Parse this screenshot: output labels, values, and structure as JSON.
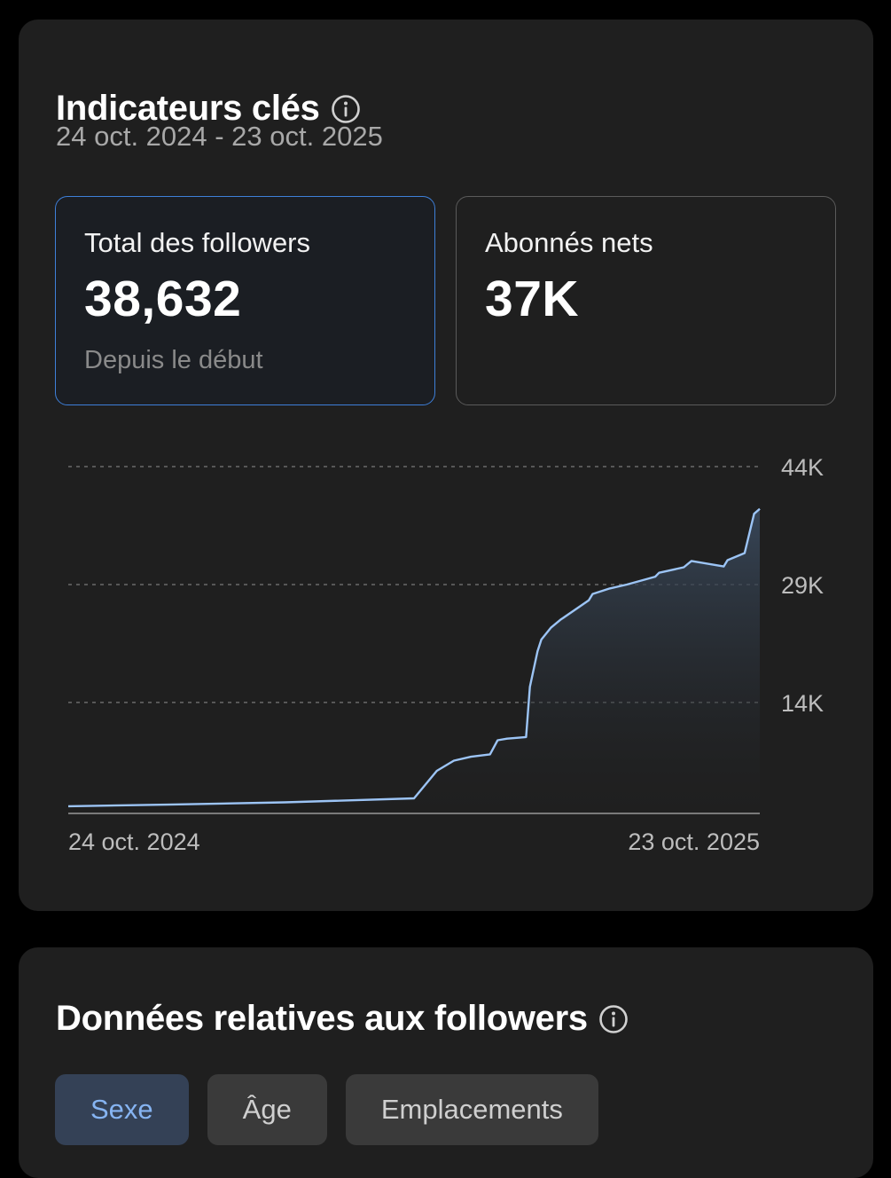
{
  "key_metrics": {
    "title": "Indicateurs clés",
    "date_range": "24 oct. 2024 - 23 oct. 2025",
    "cards": [
      {
        "label": "Total des followers",
        "value": "38,632",
        "note": "Depuis le début",
        "selected": true
      },
      {
        "label": "Abonnés nets",
        "value": "37K",
        "selected": false
      }
    ]
  },
  "chart_data": {
    "type": "area",
    "x_start": "2024-10-24",
    "x_end": "2025-10-23",
    "x_tick_labels": [
      "24 oct. 2024",
      "23 oct. 2025"
    ],
    "y_tick_labels": [
      "44K",
      "29K",
      "14K"
    ],
    "ylim": [
      0,
      44000
    ],
    "grid": true,
    "series": [
      {
        "x": [
          "2024-10-24",
          "2024-12-15",
          "2025-02-15",
          "2025-04-24",
          "2025-05-06",
          "2025-05-15",
          "2025-05-24",
          "2025-06-03",
          "2025-06-07",
          "2025-06-12",
          "2025-06-22",
          "2025-06-24",
          "2025-06-28",
          "2025-06-30",
          "2025-07-05",
          "2025-07-10",
          "2025-07-25",
          "2025-07-27",
          "2025-08-05",
          "2025-08-14",
          "2025-08-29",
          "2025-08-31",
          "2025-09-13",
          "2025-09-17",
          "2025-10-04",
          "2025-10-06",
          "2025-10-15",
          "2025-10-18",
          "2025-10-20",
          "2025-10-23"
        ],
        "values": [
          800,
          1000,
          1300,
          1800,
          5300,
          6600,
          7100,
          7400,
          9200,
          9400,
          9600,
          16000,
          20500,
          22000,
          23500,
          24500,
          27000,
          27800,
          28500,
          29000,
          30000,
          30500,
          31200,
          32000,
          31300,
          32100,
          33000,
          36000,
          38000,
          38632
        ]
      }
    ],
    "line_color": "#9cc4f5"
  },
  "follower_data": {
    "title": "Données relatives aux followers",
    "tabs": [
      {
        "label": "Sexe",
        "active": true
      },
      {
        "label": "Âge",
        "active": false
      },
      {
        "label": "Emplacements",
        "active": false
      }
    ]
  }
}
